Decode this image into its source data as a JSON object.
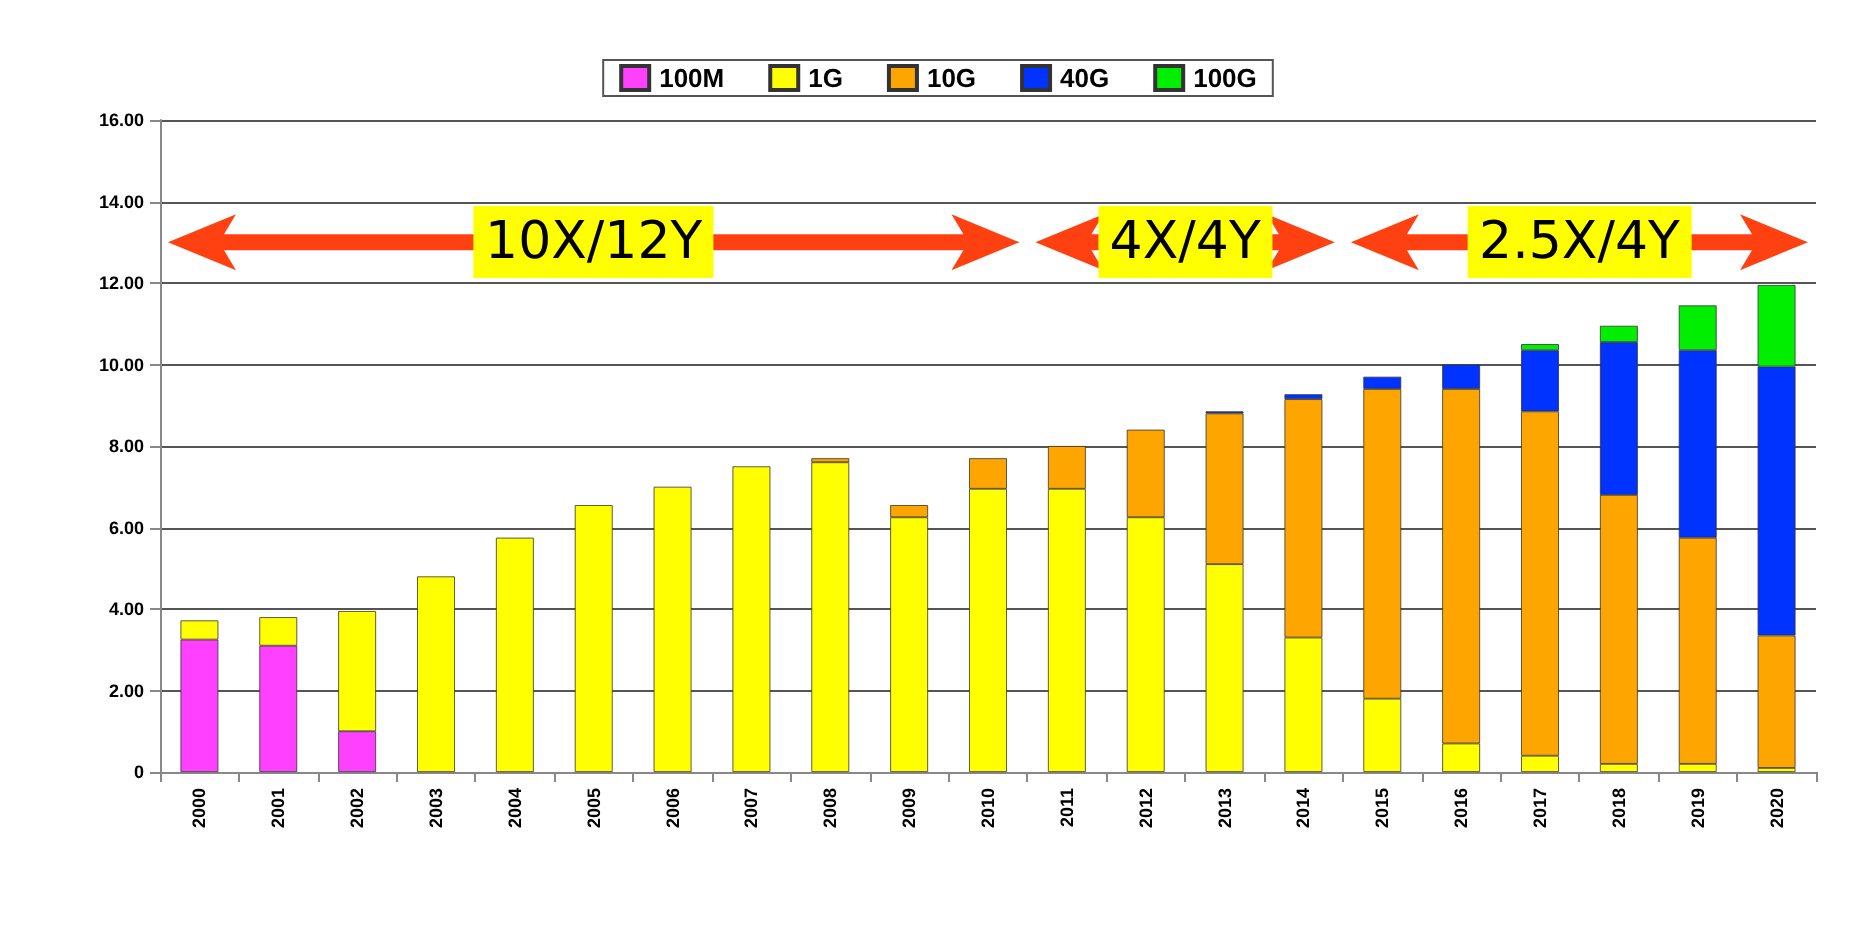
{
  "chart_data": {
    "type": "bar",
    "stacked": true,
    "categories": [
      "2000",
      "2001",
      "2002",
      "2003",
      "2004",
      "2005",
      "2006",
      "2007",
      "2008",
      "2009",
      "2010",
      "2011",
      "2012",
      "2013",
      "2014",
      "2015",
      "2016",
      "2017",
      "2018",
      "2019",
      "2020"
    ],
    "series": [
      {
        "name": "100M",
        "color": "#ff40ff",
        "values": [
          3.25,
          3.1,
          1.0,
          null,
          null,
          null,
          null,
          null,
          null,
          null,
          null,
          null,
          null,
          null,
          null,
          null,
          null,
          null,
          null,
          null,
          null
        ]
      },
      {
        "name": "1G",
        "color": "#ffff00",
        "values": [
          0.47,
          0.7,
          2.95,
          4.8,
          5.75,
          6.55,
          7.0,
          7.5,
          7.6,
          6.25,
          6.95,
          6.95,
          6.25,
          5.1,
          3.3,
          1.8,
          0.7,
          0.4,
          0.2,
          0.2,
          0.1
        ]
      },
      {
        "name": "10G",
        "color": "#ffa500",
        "values": [
          null,
          null,
          null,
          null,
          null,
          null,
          null,
          null,
          0.1,
          0.3,
          0.75,
          1.05,
          2.15,
          3.7,
          5.85,
          7.6,
          8.7,
          8.45,
          6.6,
          5.55,
          3.25
        ]
      },
      {
        "name": "40G",
        "color": "#0033ff",
        "values": [
          null,
          null,
          null,
          null,
          null,
          null,
          null,
          null,
          null,
          null,
          null,
          null,
          null,
          0.05,
          0.12,
          0.3,
          0.6,
          1.5,
          3.75,
          4.6,
          6.6
        ]
      },
      {
        "name": "100G",
        "color": "#00ee00",
        "values": [
          null,
          null,
          null,
          null,
          null,
          null,
          null,
          null,
          null,
          null,
          null,
          null,
          null,
          null,
          null,
          null,
          null,
          0.15,
          0.4,
          1.1,
          2.0
        ]
      }
    ],
    "ylim": [
      0,
      16
    ],
    "yticks": [
      {
        "value": 0,
        "label": "0"
      },
      {
        "value": 2,
        "label": "2.00"
      },
      {
        "value": 4,
        "label": "4.00"
      },
      {
        "value": 6,
        "label": "6.00"
      },
      {
        "value": 8,
        "label": "8.00"
      },
      {
        "value": 10,
        "label": "10.00"
      },
      {
        "value": 12,
        "label": "12.00"
      },
      {
        "value": 14,
        "label": "14.00"
      },
      {
        "value": 16,
        "label": "16.00"
      }
    ],
    "grid": "y",
    "legend": "top",
    "annotations": [
      "10X/12Y",
      "4X/4Y",
      "2.5X/4Y"
    ]
  }
}
